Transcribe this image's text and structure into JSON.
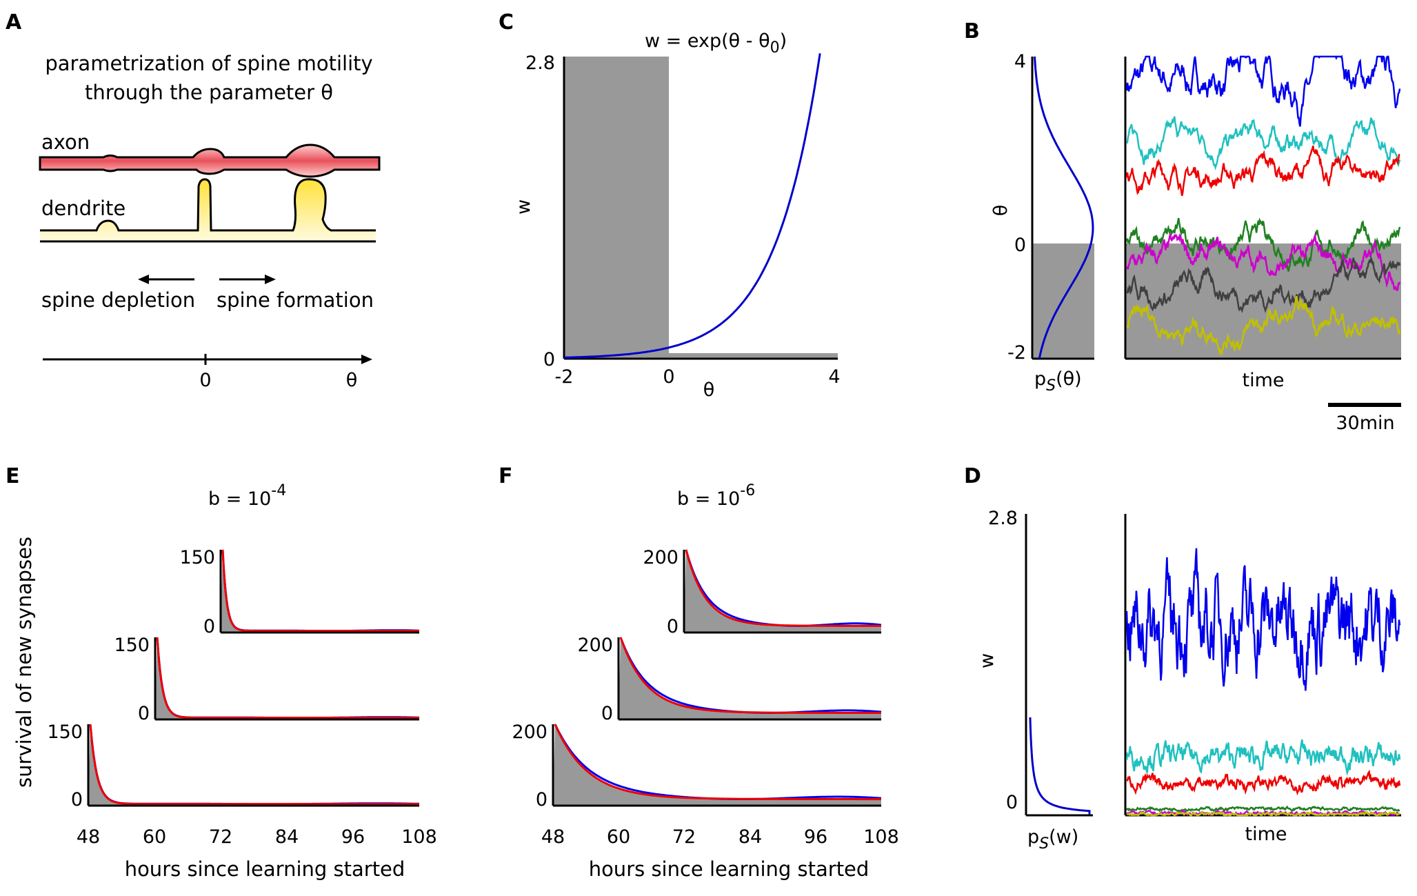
{
  "panel_labels": {
    "a": "A",
    "b": "B",
    "c": "C",
    "d": "D",
    "e": "E",
    "f": "F"
  },
  "panel_a": {
    "title_line1": "parametrization of spine motility",
    "title_line2": "through the parameter θ",
    "axon_label": "axon",
    "dendrite_label": "dendrite",
    "depletion_label": "spine depletion",
    "formation_label": "spine formation",
    "axis_zero": "0",
    "axis_theta": "θ",
    "colors": {
      "axon": "#e8505a",
      "dendrite": "#ffe23a"
    }
  },
  "panel_c": {
    "title": "w = exp(θ - θ",
    "title_sub": "0",
    "title_end": ")",
    "ylabel": "w",
    "xlabel": "θ",
    "y_ticks": [
      "2.8",
      "0"
    ],
    "x_ticks": [
      "-2",
      "0",
      "4"
    ],
    "chart_data": {
      "type": "line",
      "function": "w = exp(theta - theta0)",
      "theta0": 2.57,
      "xlim": [
        -2,
        4
      ],
      "ylim": [
        0,
        2.8
      ],
      "shaded_region": [
        -2,
        0
      ],
      "line_color": "#0000cc"
    }
  },
  "panel_b": {
    "ylabel": "θ",
    "y_ticks": [
      "4",
      "0",
      "-2"
    ],
    "dist_label": "p",
    "dist_sub": "S",
    "dist_arg": "(θ)",
    "time_label": "time",
    "scale_label": "30min",
    "chart_data": {
      "type": "line",
      "ylim": [
        -2,
        4
      ],
      "threshold": 0,
      "distribution": {
        "mean": 0.6,
        "sd": 1.2
      },
      "series": [
        {
          "color": "#0000ee",
          "mean": 3.5
        },
        {
          "color": "#20c0c0",
          "mean": 2.3
        },
        {
          "color": "#ee0000",
          "mean": 1.7
        },
        {
          "color": "#208020",
          "mean": 0.3
        },
        {
          "color": "#cc00cc",
          "mean": -0.1
        },
        {
          "color": "#404040",
          "mean": -0.6
        },
        {
          "color": "#c0c000",
          "mean": -1.3
        }
      ]
    }
  },
  "panel_d": {
    "ylabel": "w",
    "y_ticks": [
      "2.8",
      "0"
    ],
    "dist_label": "p",
    "dist_sub": "S",
    "dist_arg": "(w)",
    "time_label": "time",
    "chart_data": {
      "type": "line",
      "ylim": [
        0,
        2.8
      ],
      "series": [
        {
          "color": "#0000ee",
          "mean": 1.8
        },
        {
          "color": "#20c0c0",
          "mean": 0.55
        },
        {
          "color": "#ee0000",
          "mean": 0.3
        },
        {
          "color": "#208020",
          "mean": 0.06
        },
        {
          "color": "#cc00cc",
          "mean": 0.02
        },
        {
          "color": "#c0c000",
          "mean": 0.01
        }
      ]
    }
  },
  "survival_common": {
    "ylabel": "survival of new synapses",
    "xlabel": "hours since learning started",
    "x_ticks": [
      "48",
      "60",
      "72",
      "84",
      "96",
      "108"
    ]
  },
  "panel_e": {
    "title_base": "b = 10",
    "title_exp": "-4",
    "insets": [
      {
        "ymax_label": "150",
        "ymin_label": "0"
      },
      {
        "ymax_label": "150",
        "ymin_label": "0"
      },
      {
        "ymax_label": "150",
        "ymin_label": "0"
      }
    ],
    "chart_data": {
      "type": "area",
      "x_range": [
        48,
        108
      ],
      "ylim": [
        0,
        150
      ],
      "decay": "fast"
    }
  },
  "panel_f": {
    "title_base": "b = 10",
    "title_exp": "-6",
    "insets": [
      {
        "ymax_label": "200",
        "ymin_label": "0"
      },
      {
        "ymax_label": "200",
        "ymin_label": "0"
      },
      {
        "ymax_label": "200",
        "ymin_label": "0"
      }
    ],
    "chart_data": {
      "type": "area",
      "x_range": [
        48,
        108
      ],
      "ylim": [
        0,
        200
      ],
      "decay": "slow"
    }
  }
}
